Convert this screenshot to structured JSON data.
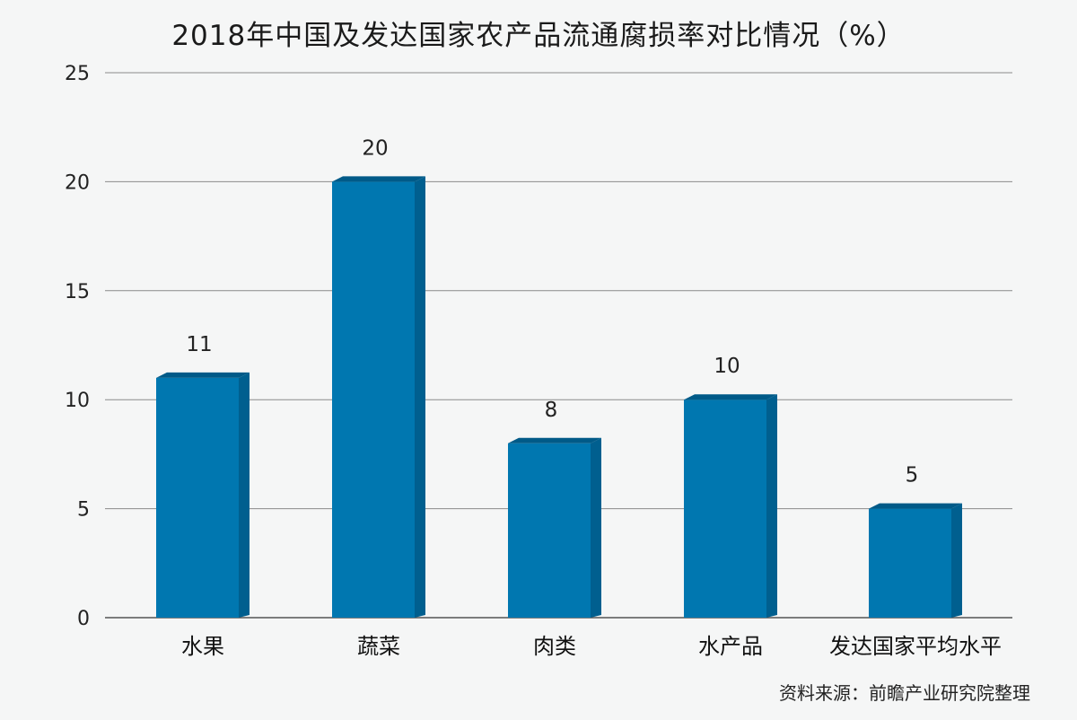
{
  "chart_data": {
    "type": "bar",
    "title": "2018年中国及发达国家农产品流通腐损率对比情况（%）",
    "categories": [
      "水果",
      "蔬菜",
      "肉类",
      "水产品",
      "发达国家平均水平"
    ],
    "values": [
      11,
      20,
      8,
      10,
      5
    ],
    "data_labels": [
      "11",
      "20",
      "8",
      "10",
      "5"
    ],
    "yticks": [
      0,
      5,
      10,
      15,
      20,
      25
    ],
    "ylim": [
      0,
      25
    ],
    "xlabel": "",
    "ylabel": "",
    "grid": true,
    "legend": "none",
    "bar_color": "#0077b0",
    "bar_side_color": "#005f8f",
    "bar_top_color": "#005a88"
  },
  "source": "资料来源：前瞻产业研究院整理"
}
